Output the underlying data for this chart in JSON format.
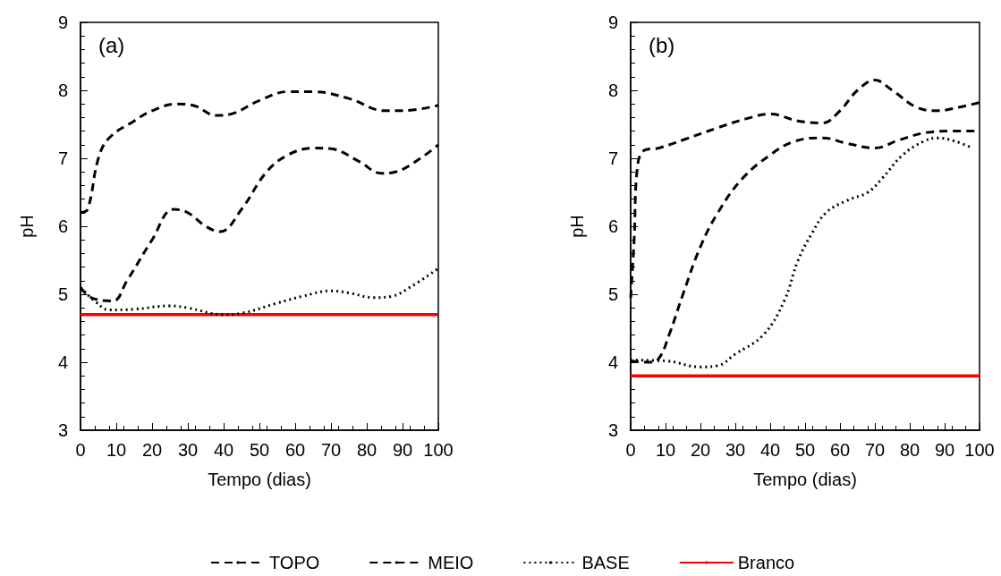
{
  "chart_data": [
    {
      "type": "line",
      "annotations": [
        "(a)"
      ],
      "xlabel": "Tempo (dias)",
      "ylabel": "pH",
      "xlim": [
        0,
        100
      ],
      "xticks": [
        0,
        10,
        20,
        30,
        40,
        50,
        60,
        70,
        80,
        90,
        100
      ],
      "ylim": [
        3,
        9
      ],
      "yticks": [
        3,
        4,
        5,
        6,
        7,
        8,
        9
      ],
      "grid": false,
      "legend": false,
      "marker": "none",
      "series": [
        {
          "color": "#000000",
          "line_style": "dashed",
          "x": [
            0,
            2,
            5,
            8,
            15,
            20,
            27,
            32,
            38,
            42,
            50,
            58,
            65,
            75,
            85,
            90,
            100
          ],
          "values": [
            6.2,
            6.25,
            7.0,
            7.3,
            7.55,
            7.7,
            7.8,
            7.77,
            7.63,
            7.65,
            7.85,
            7.98,
            7.98,
            7.88,
            7.7,
            7.7,
            7.78
          ]
        },
        {
          "color": "#000000",
          "line_style": "dashed",
          "x": [
            0,
            3,
            9,
            13,
            20,
            26,
            30,
            35,
            39,
            45,
            52,
            58,
            65,
            70,
            78,
            84,
            88,
            95,
            100
          ],
          "values": [
            5.1,
            4.95,
            4.9,
            5.2,
            5.8,
            6.25,
            6.2,
            6.0,
            5.92,
            6.25,
            6.8,
            7.05,
            7.15,
            7.14,
            6.95,
            6.78,
            6.8,
            7.0,
            7.2
          ]
        },
        {
          "color": "#000000",
          "line_style": "dotted",
          "x": [
            0,
            4,
            8,
            15,
            25,
            30,
            40,
            45,
            55,
            62,
            70,
            75,
            82,
            87,
            92,
            100
          ],
          "values": [
            5.1,
            4.9,
            4.77,
            4.78,
            4.83,
            4.8,
            4.7,
            4.72,
            4.87,
            4.97,
            5.05,
            5.02,
            4.95,
            4.97,
            5.1,
            5.38
          ]
        },
        {
          "color": "#ff0000",
          "line_style": "solid",
          "x": [
            0,
            100
          ],
          "values": [
            4.7,
            4.7
          ]
        }
      ]
    },
    {
      "type": "line",
      "annotations": [
        "(b)"
      ],
      "xlabel": "Tempo (dias)",
      "ylabel": "pH",
      "xlim": [
        0,
        100
      ],
      "xticks": [
        0,
        10,
        20,
        30,
        40,
        50,
        60,
        70,
        80,
        90,
        100
      ],
      "ylim": [
        3,
        9
      ],
      "yticks": [
        3,
        4,
        5,
        6,
        7,
        8,
        9
      ],
      "grid": false,
      "legend": "bottom",
      "marker": "none",
      "series": [
        {
          "name": "TOPO",
          "color": "#000000",
          "line_style": "dashed",
          "x": [
            0,
            1,
            2,
            4,
            8,
            15,
            25,
            33,
            40,
            48,
            55,
            60,
            65,
            70,
            75,
            82,
            88,
            94,
            100
          ],
          "values": [
            4.95,
            5.8,
            6.9,
            7.12,
            7.15,
            7.27,
            7.45,
            7.58,
            7.65,
            7.55,
            7.52,
            7.7,
            8.0,
            8.15,
            8.0,
            7.75,
            7.7,
            7.75,
            7.82
          ]
        },
        {
          "name": "MEIO",
          "color": "#000000",
          "line_style": "dashed",
          "x": [
            0,
            5,
            8,
            11,
            15,
            20,
            25,
            32,
            40,
            47,
            55,
            62,
            70,
            77,
            85,
            92,
            100
          ],
          "values": [
            4.02,
            4.0,
            4.05,
            4.4,
            5.0,
            5.7,
            6.2,
            6.7,
            7.05,
            7.25,
            7.3,
            7.22,
            7.15,
            7.27,
            7.38,
            7.4,
            7.4
          ]
        },
        {
          "name": "BASE",
          "color": "#000000",
          "line_style": "dotted",
          "x": [
            0,
            10,
            20,
            25,
            30,
            38,
            44,
            48,
            52,
            56,
            62,
            68,
            72,
            78,
            84,
            88,
            93,
            98
          ],
          "values": [
            4.03,
            4.02,
            3.93,
            3.95,
            4.12,
            4.4,
            4.9,
            5.5,
            5.9,
            6.2,
            6.38,
            6.5,
            6.7,
            7.05,
            7.25,
            7.3,
            7.25,
            7.15
          ]
        },
        {
          "name": "Branco",
          "color": "#ff0000",
          "line_style": "solid",
          "x": [
            0,
            100
          ],
          "values": [
            3.8,
            3.8
          ]
        }
      ]
    }
  ]
}
